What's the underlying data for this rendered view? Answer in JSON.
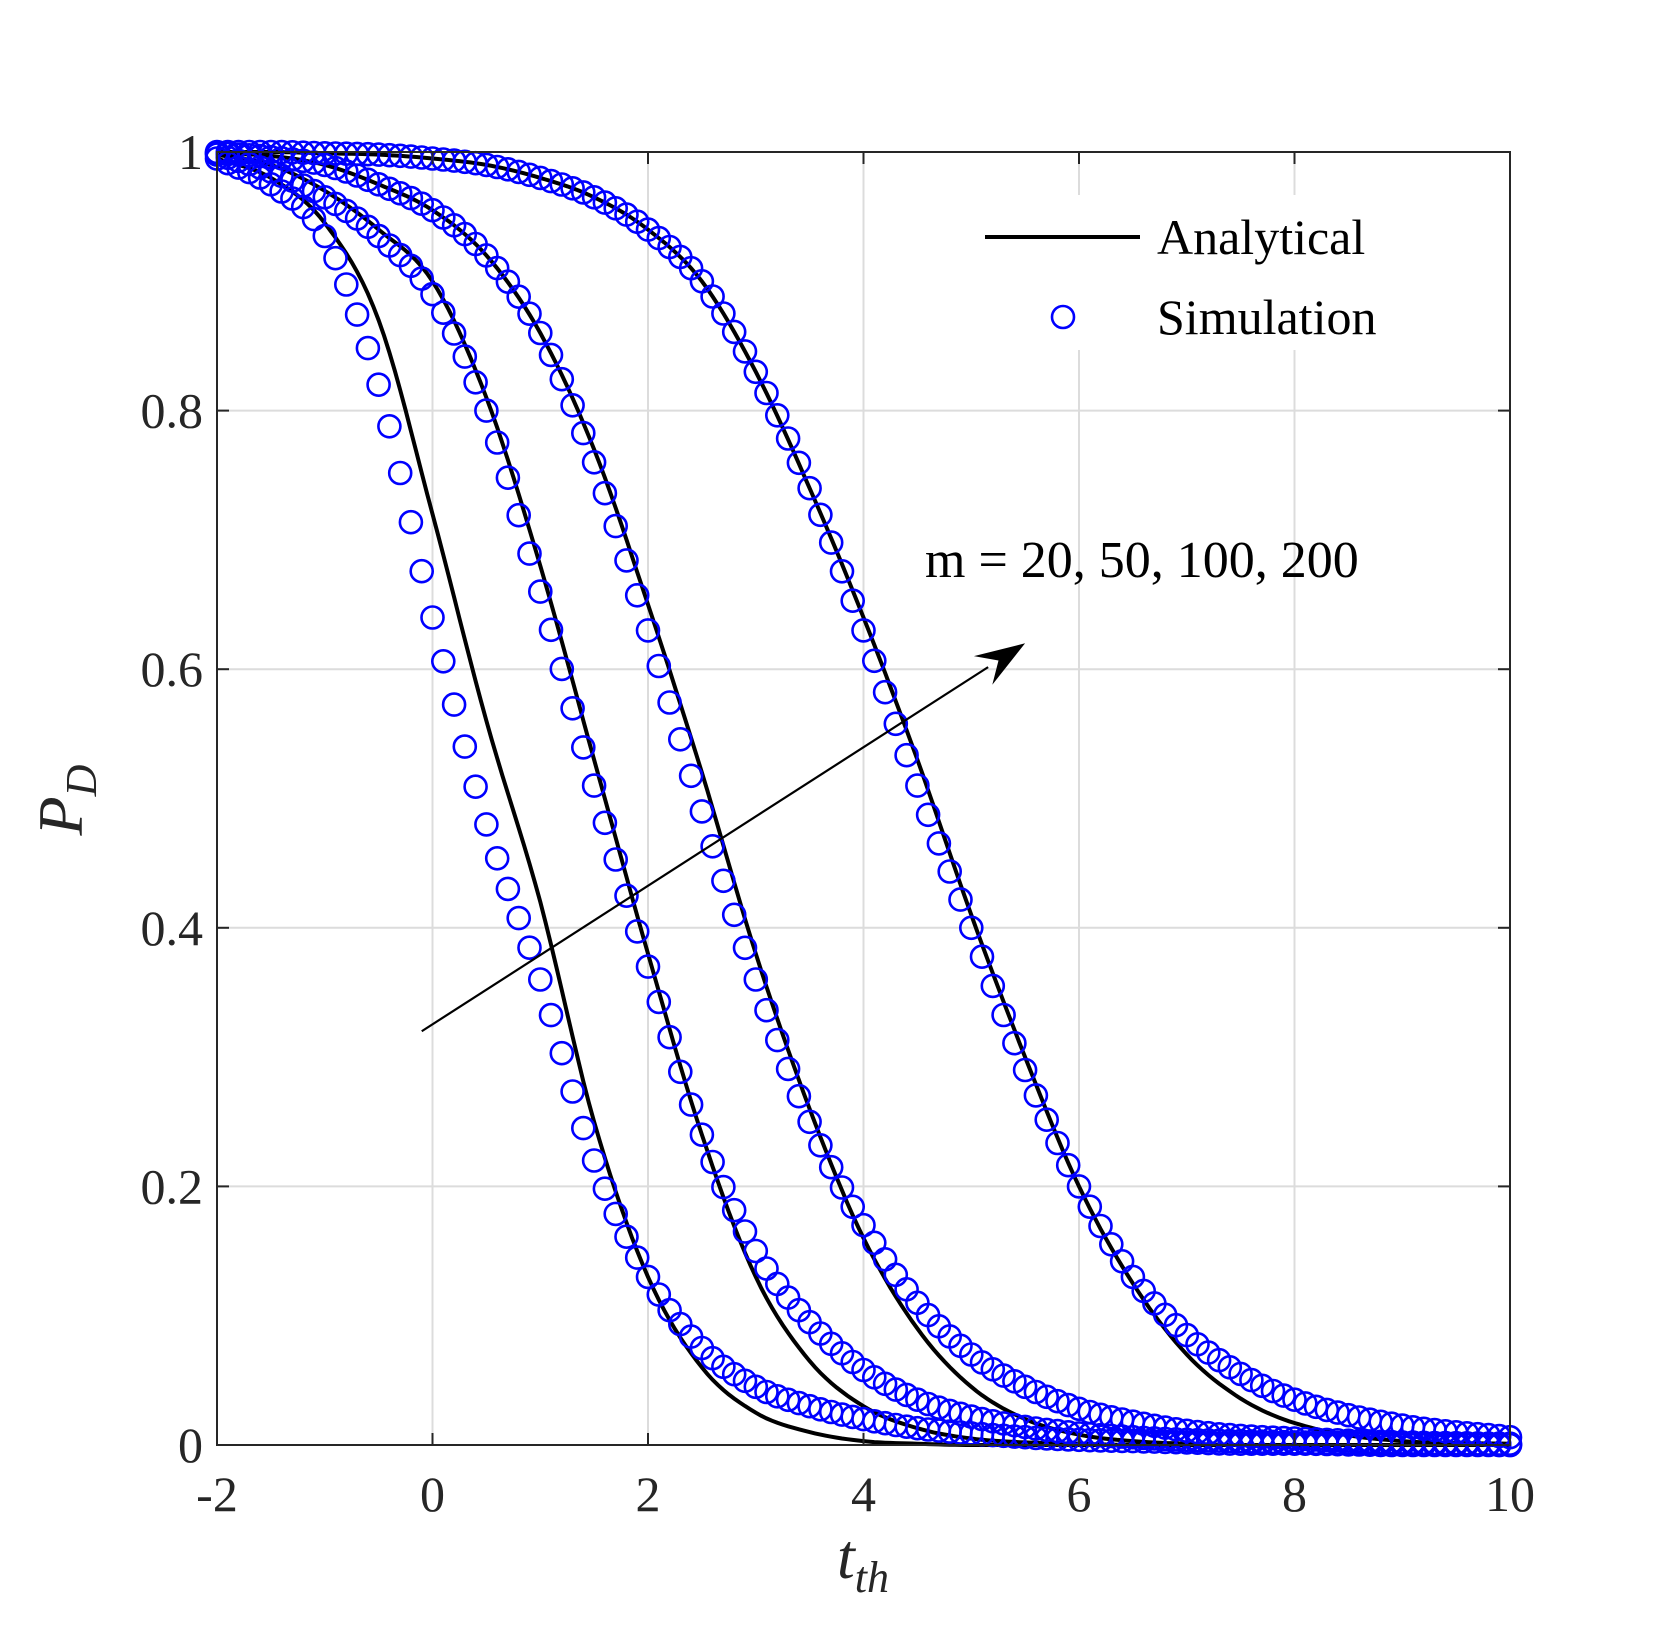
{
  "chart_data": {
    "type": "line",
    "xlabel": "t",
    "xlabel_sub": "th",
    "ylabel": "P",
    "ylabel_sub": "D",
    "xlim": [
      -2,
      10
    ],
    "ylim": [
      0,
      1
    ],
    "xticks": [
      -2,
      0,
      2,
      4,
      6,
      8,
      10
    ],
    "xtick_labels": [
      "-2",
      "0",
      "2",
      "4",
      "6",
      "8",
      "10"
    ],
    "yticks": [
      0,
      0.2,
      0.4,
      0.6,
      0.8,
      1
    ],
    "ytick_labels": [
      "0",
      "0.2",
      "0.4",
      "0.6",
      "0.8",
      "1"
    ],
    "grid": true,
    "legend_position": "top-right",
    "legend": [
      "Analytical",
      "Simulation"
    ],
    "colors": {
      "analytical": "#000000",
      "simulation": "#0000ff",
      "grid": "#dcdcdc",
      "axis": "#262626"
    },
    "annotation": {
      "text": "m = 20, 50, 100, 200",
      "arrow_from": [
        -0.1,
        0.32
      ],
      "arrow_to": [
        5.5,
        0.62
      ]
    },
    "curve_x": [
      -2,
      -1.5,
      -1,
      -0.5,
      0,
      0.5,
      1,
      1.5,
      2,
      2.5,
      3,
      3.5,
      4,
      4.5,
      5,
      5.5,
      6,
      6.5,
      7,
      7.5,
      8,
      9,
      10
    ],
    "series": [
      {
        "label": "m = 20",
        "analytical": [
          0.995,
          0.98,
          0.945,
          0.87,
          0.72,
          0.56,
          0.42,
          0.25,
          0.13,
          0.06,
          0.025,
          0.01,
          0.003,
          0.001,
          0,
          0,
          0,
          0,
          0,
          0,
          0,
          0,
          0
        ],
        "simulation": [
          0.995,
          0.975,
          0.935,
          0.82,
          0.64,
          0.48,
          0.36,
          0.22,
          0.13,
          0.075,
          0.045,
          0.03,
          0.02,
          0.013,
          0.009,
          0.006,
          0.004,
          0.003,
          0.002,
          0.001,
          0.001,
          0,
          0
        ]
      },
      {
        "label": "m = 50",
        "analytical": [
          0.998,
          0.99,
          0.97,
          0.94,
          0.9,
          0.81,
          0.68,
          0.53,
          0.38,
          0.24,
          0.13,
          0.065,
          0.03,
          0.013,
          0.005,
          0.002,
          0.001,
          0,
          0,
          0,
          0,
          0,
          0
        ],
        "simulation": [
          0.998,
          0.985,
          0.965,
          0.935,
          0.89,
          0.8,
          0.66,
          0.51,
          0.37,
          0.24,
          0.15,
          0.095,
          0.058,
          0.035,
          0.022,
          0.014,
          0.009,
          0.006,
          0.004,
          0.003,
          0.002,
          0.001,
          0
        ]
      },
      {
        "label": "m = 100",
        "analytical": [
          0.999,
          0.997,
          0.99,
          0.975,
          0.955,
          0.92,
          0.86,
          0.77,
          0.65,
          0.52,
          0.38,
          0.26,
          0.16,
          0.09,
          0.045,
          0.02,
          0.008,
          0.003,
          0.001,
          0,
          0,
          0,
          0
        ],
        "simulation": [
          0.999,
          0.996,
          0.99,
          0.975,
          0.955,
          0.92,
          0.86,
          0.76,
          0.63,
          0.49,
          0.36,
          0.25,
          0.17,
          0.11,
          0.07,
          0.045,
          0.028,
          0.018,
          0.011,
          0.007,
          0.005,
          0.002,
          0.001
        ]
      },
      {
        "label": "m = 200",
        "analytical": [
          1,
          1,
          0.999,
          0.998,
          0.995,
          0.99,
          0.98,
          0.965,
          0.94,
          0.9,
          0.83,
          0.74,
          0.64,
          0.53,
          0.41,
          0.3,
          0.2,
          0.125,
          0.07,
          0.036,
          0.017,
          0.003,
          0.001
        ],
        "simulation": [
          1,
          1,
          0.999,
          0.998,
          0.995,
          0.99,
          0.98,
          0.965,
          0.94,
          0.9,
          0.83,
          0.74,
          0.63,
          0.51,
          0.4,
          0.29,
          0.2,
          0.13,
          0.085,
          0.055,
          0.035,
          0.015,
          0.006
        ]
      }
    ]
  }
}
